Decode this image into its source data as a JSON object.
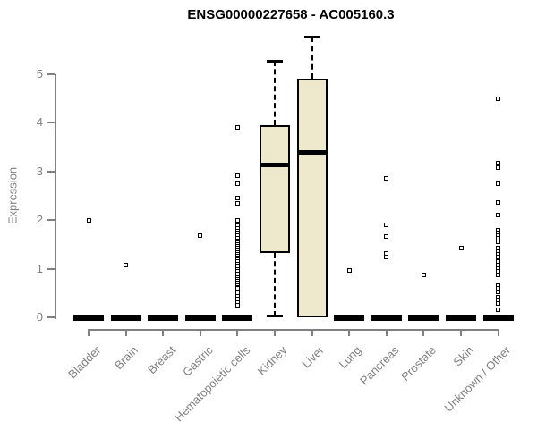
{
  "chart_data": {
    "type": "boxplot",
    "title": "ENSG00000227658 - AC005160.3",
    "ylabel": "Expression",
    "xlabel": "",
    "ylim": [
      0,
      5
    ],
    "yticks": [
      0,
      1,
      2,
      3,
      4,
      5
    ],
    "grid": false,
    "legend": "none",
    "colors": {
      "box_fill": "#EEE8CD",
      "box_border": "#000000",
      "median": "#000000",
      "axis": "#808080",
      "title": "#000000",
      "outlier_fill": "#ffffff"
    },
    "categories": [
      "Bladder",
      "Brain",
      "Breast",
      "Gastric",
      "Hematopoietic cells",
      "Kidney",
      "Liver",
      "Lung",
      "Pancreas",
      "Prostate",
      "Skin",
      "Unknown / Other"
    ],
    "groups": [
      {
        "category": "Bladder",
        "q1": 0,
        "median": 0,
        "q3": 0,
        "whisker_low": 0,
        "whisker_high": 0,
        "outliers": [
          1.99
        ]
      },
      {
        "category": "Brain",
        "q1": 0,
        "median": 0,
        "q3": 0,
        "whisker_low": 0,
        "whisker_high": 0,
        "outliers": [
          1.07
        ]
      },
      {
        "category": "Breast",
        "q1": 0,
        "median": 0,
        "q3": 0,
        "whisker_low": 0,
        "whisker_high": 0,
        "outliers": []
      },
      {
        "category": "Gastric",
        "q1": 0,
        "median": 0,
        "q3": 0,
        "whisker_low": 0,
        "whisker_high": 0,
        "outliers": [
          1.69
        ]
      },
      {
        "category": "Hematopoietic cells",
        "q1": 0,
        "median": 0,
        "q3": 0,
        "whisker_low": 0,
        "whisker_high": 0,
        "outliers": [
          3.9,
          2.92,
          2.74,
          2.45,
          2.35,
          1.99,
          1.93,
          1.88,
          1.83,
          1.78,
          1.73,
          1.68,
          1.63,
          1.58,
          1.54,
          1.5,
          1.46,
          1.42,
          1.38,
          1.34,
          1.3,
          1.26,
          1.22,
          1.18,
          1.14,
          1.1,
          1.06,
          1.02,
          0.98,
          0.94,
          0.9,
          0.86,
          0.82,
          0.78,
          0.74,
          0.7,
          0.66,
          0.62,
          0.59,
          0.5,
          0.44,
          0.37,
          0.3,
          0.24
        ]
      },
      {
        "category": "Kidney",
        "q1": 1.33,
        "median": 3.13,
        "q3": 3.95,
        "whisker_low": 0.02,
        "whisker_high": 5.28,
        "outliers": []
      },
      {
        "category": "Liver",
        "q1": 0,
        "median": 3.4,
        "q3": 4.91,
        "whisker_low": 0,
        "whisker_high": 5.77,
        "outliers": []
      },
      {
        "category": "Lung",
        "q1": 0,
        "median": 0,
        "q3": 0,
        "whisker_low": 0,
        "whisker_high": 0,
        "outliers": [
          0.96
        ]
      },
      {
        "category": "Pancreas",
        "q1": 0,
        "median": 0,
        "q3": 0,
        "whisker_low": 0,
        "whisker_high": 0,
        "outliers": [
          2.85,
          1.91,
          1.67,
          1.32,
          1.25
        ]
      },
      {
        "category": "Prostate",
        "q1": 0,
        "median": 0,
        "q3": 0,
        "whisker_low": 0,
        "whisker_high": 0,
        "outliers": [
          0.87
        ]
      },
      {
        "category": "Skin",
        "q1": 0,
        "median": 0,
        "q3": 0,
        "whisker_low": 0,
        "whisker_high": 0,
        "outliers": [
          1.43
        ]
      },
      {
        "category": "Unknown / Other",
        "q1": 0,
        "median": 0,
        "q3": 0,
        "whisker_low": 0,
        "whisker_high": 0,
        "outliers": [
          4.5,
          3.18,
          3.08,
          2.74,
          2.37,
          2.1,
          1.8,
          1.74,
          1.68,
          1.62,
          1.56,
          1.42,
          1.36,
          1.3,
          1.24,
          1.15,
          1.08,
          1.01,
          0.95,
          0.88,
          0.66,
          0.6,
          0.53,
          0.42,
          0.35,
          0.28,
          0.15
        ]
      }
    ]
  }
}
